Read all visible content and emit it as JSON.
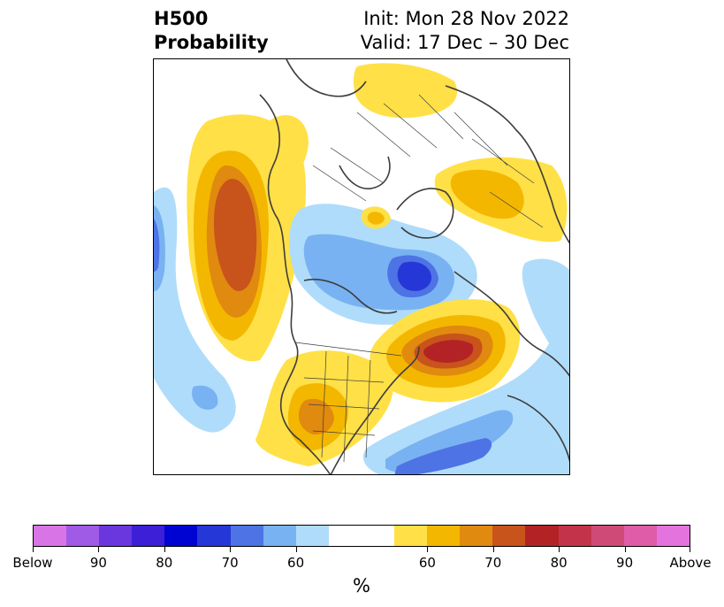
{
  "title": {
    "left_line1": "H500",
    "left_line2": "Probability",
    "right_line1": "Init: Mon 28 Nov 2022",
    "right_line2": "Valid: 17 Dec – 30 Dec"
  },
  "colorbar": {
    "unit": "%",
    "colors": [
      "#d974e6",
      "#9f5ae6",
      "#6a37de",
      "#3d1fd8",
      "#0004d2",
      "#2637d8",
      "#4d73e5",
      "#78b2f2",
      "#afdcfa",
      "#ffffff",
      "#ffffff",
      "#ffe047",
      "#f4b700",
      "#e08a0f",
      "#c8531b",
      "#b32326",
      "#c3344a",
      "#cf4a76",
      "#df5da8",
      "#e573de"
    ],
    "tick_labels": [
      "Below",
      "90",
      "80",
      "70",
      "60",
      "60",
      "70",
      "80",
      "90",
      "Above"
    ]
  },
  "map": {
    "colors": {
      "below_90": "#2637d8",
      "below_80": "#4d73e5",
      "below_70": "#78b2f2",
      "below_60": "#afdcfa",
      "above_60": "#ffe047",
      "above_70": "#f4b700",
      "above_80": "#e08a0f",
      "above_90": "#c8531b",
      "above_high": "#b32326",
      "coast": "#3d3d3d"
    }
  }
}
